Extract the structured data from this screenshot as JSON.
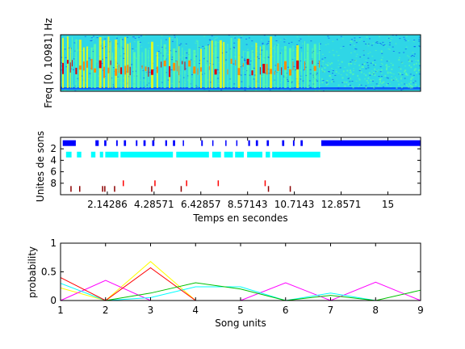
{
  "chart_data": [
    {
      "type": "heatmap",
      "ylabel": "Freq [0, 10981] Hz",
      "duration_s": 16.5,
      "song_end_s": 11.9,
      "colormap": [
        "#00008f",
        "#0030ff",
        "#00c8ff",
        "#60ffa0",
        "#ffff00",
        "#ff9000",
        "#e00000",
        "#900000"
      ]
    },
    {
      "type": "scatter",
      "xlabel": "Temps en secondes",
      "ylabel": "Unites de sons",
      "xticks": [
        "2.14286",
        "4.28571",
        "6.42857",
        "8.57143",
        "10.7143",
        "12.8571",
        "15"
      ],
      "xtick_values": [
        2.14286,
        4.28571,
        6.42857,
        8.57143,
        10.7143,
        12.8571,
        15
      ],
      "yticks": [
        "2",
        "4",
        "6",
        "8"
      ],
      "ytick_values": [
        2,
        4,
        6,
        8
      ],
      "xlim": [
        0,
        16.5
      ],
      "ylim": [
        10,
        0
      ],
      "rows": [
        {
          "unit": 1,
          "color": "#0000ff",
          "segments": [
            [
              0.1,
              0.7
            ],
            [
              1.6,
              1.75
            ],
            [
              2.0,
              2.1
            ],
            [
              2.55,
              2.62
            ],
            [
              2.9,
              3.0
            ],
            [
              3.45,
              3.52
            ],
            [
              3.8,
              3.9
            ],
            [
              4.2,
              4.3
            ],
            [
              4.8,
              4.88
            ],
            [
              5.15,
              5.25
            ],
            [
              5.6,
              5.65
            ],
            [
              6.45,
              6.52
            ],
            [
              6.95,
              7.0
            ],
            [
              7.55,
              7.6
            ],
            [
              8.05,
              8.1
            ],
            [
              8.6,
              8.68
            ],
            [
              8.95,
              9.05
            ],
            [
              9.45,
              9.55
            ],
            [
              10.15,
              10.25
            ],
            [
              10.65,
              10.72
            ],
            [
              11.0,
              11.1
            ],
            [
              11.95,
              16.5
            ]
          ]
        },
        {
          "unit": 3,
          "color": "#00ffff",
          "segments": [
            [
              0.25,
              0.5
            ],
            [
              0.75,
              0.95
            ],
            [
              1.4,
              1.6
            ],
            [
              1.8,
              1.95
            ],
            [
              2.05,
              2.65
            ],
            [
              2.75,
              5.15
            ],
            [
              5.3,
              6.8
            ],
            [
              6.95,
              7.35
            ],
            [
              7.5,
              7.9
            ],
            [
              8.0,
              8.4
            ],
            [
              8.55,
              9.25
            ],
            [
              9.4,
              9.6
            ],
            [
              9.7,
              11.9
            ]
          ]
        },
        {
          "unit": 8,
          "color": "#ff0000",
          "segments": [
            [
              2.85,
              2.9
            ],
            [
              4.3,
              4.35
            ],
            [
              5.75,
              5.8
            ],
            [
              7.2,
              7.25
            ],
            [
              9.35,
              9.4
            ]
          ]
        },
        {
          "unit": 9,
          "color": "#8b0000",
          "segments": [
            [
              0.45,
              0.5
            ],
            [
              0.85,
              0.9
            ],
            [
              1.9,
              1.95
            ],
            [
              2.0,
              2.05
            ],
            [
              2.45,
              2.5
            ],
            [
              4.15,
              4.2
            ],
            [
              5.5,
              5.55
            ],
            [
              9.5,
              9.55
            ],
            [
              10.5,
              10.55
            ]
          ]
        }
      ]
    },
    {
      "type": "line",
      "xlabel": "Song units",
      "ylabel": "probability",
      "x": [
        1,
        2,
        3,
        4,
        5,
        6,
        7,
        8,
        9
      ],
      "xticks": [
        "1",
        "2",
        "3",
        "4",
        "5",
        "6",
        "7",
        "8",
        "9"
      ],
      "yticks": [
        "0",
        "0.5",
        "1"
      ],
      "ytick_values": [
        0,
        0.5,
        1
      ],
      "xlim": [
        1,
        9
      ],
      "ylim": [
        0,
        1
      ],
      "series": [
        {
          "color": "#ffff00",
          "values": [
            0.22,
            0.0,
            0.68,
            0.0,
            0.0,
            0.0,
            0.0,
            0.0,
            0.0
          ]
        },
        {
          "color": "#ff00ff",
          "values": [
            0.0,
            0.35,
            0.0,
            0.0,
            0.0,
            0.31,
            0.0,
            0.32,
            0.0
          ]
        },
        {
          "color": "#00ffff",
          "values": [
            0.3,
            0.0,
            0.05,
            0.24,
            0.24,
            0.0,
            0.13,
            0.0,
            0.0
          ]
        },
        {
          "color": "#ff0000",
          "values": [
            0.4,
            0.0,
            0.57,
            0.0,
            0.0,
            0.0,
            0.0,
            0.0,
            0.0
          ]
        },
        {
          "color": "#00c000",
          "values": [
            0.0,
            0.0,
            0.13,
            0.31,
            0.2,
            0.0,
            0.09,
            0.0,
            0.18
          ]
        },
        {
          "color": "#0000ff",
          "values": [
            0.0,
            0.0,
            0.0,
            0.0,
            0.0,
            0.0,
            0.0,
            0.0,
            0.0
          ]
        }
      ]
    }
  ]
}
